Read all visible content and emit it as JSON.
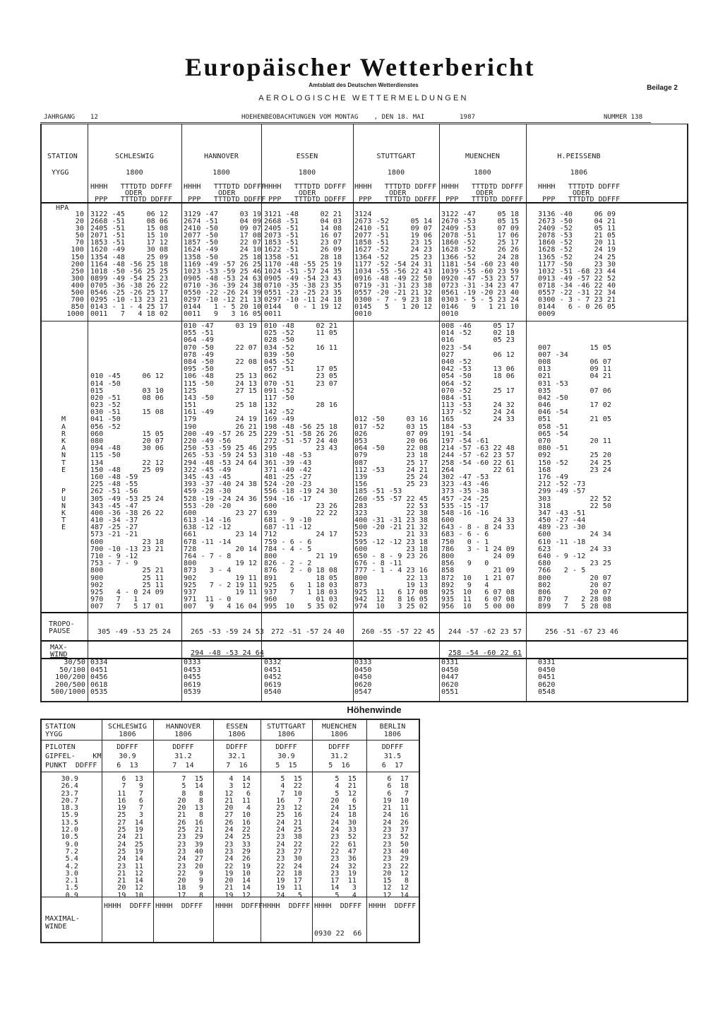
{
  "header": {
    "title": "Europäischer Wetterbericht",
    "subtitle": "Amtsblatt des Deutschen Wetterdienstes",
    "beilage": "Beilage 2",
    "section_title": "AEROLOGISCHE WETTERMELDUNGEN",
    "jahrgang_label": "JAHRGANG",
    "jahrgang": "12",
    "observation_line": "HOEHENBEOBACHTUNGEN VOM MONTAG    , DEN 18. MAI         1987",
    "nummer": "NUMMER 138"
  },
  "table": {
    "station_label": "STATION",
    "yygg_label": "YYGG",
    "col_head_1": "HHHH   TTTDTD DDFFF",
    "col_head_2": "        ODER",
    "col_head_3": " PPP   TTTDTD DDFFF",
    "hpa_label": "HPA",
    "levels": [
      "10",
      "20",
      "30",
      "50",
      "70",
      "100",
      "150",
      "200",
      "250",
      "300",
      "400",
      "500",
      "700",
      "850",
      "1000"
    ],
    "sig_label": [
      "",
      "",
      "",
      "",
      "",
      "",
      "",
      "",
      "",
      "",
      "",
      "",
      "",
      "M",
      "A",
      "R",
      "K",
      "A",
      "N",
      "T",
      "E",
      "",
      "",
      "P",
      "U",
      "N",
      "K",
      "T",
      "E"
    ],
    "tropo_label": [
      "TROPO-",
      "PAUSE"
    ],
    "maxwind_label": [
      "MAX-",
      "WIND"
    ],
    "layer_labels": [
      "30/50",
      "50/100",
      "100/200",
      "200/500",
      "500/1000"
    ],
    "stations": [
      {
        "name": "SCHLESWIG",
        "yygg": "1800",
        "levels": [
          "3122 -45     06 12",
          "2668 -51     08 06",
          "2405 -51     15 08",
          "2071 -51     15 10",
          "1853 -51     17 12",
          "1620 -49     30 08",
          "1354 -48     25 09",
          "1164 -48 -56 25 18",
          "1018 -50 -56 25 25",
          "0899 -49 -54 25 23",
          "0705 -36 -38 26 22",
          "0546 -25 -26 25 17",
          "0295 -10 -13 23 21",
          "0143 - 1 - 4 25 17",
          "0011   7   4 18 02"
        ],
        "significant": [
          "",
          "",
          "",
          "",
          "",
          "",
          "",
          "010 -45     06 12",
          "014 -50",
          "015         03 10",
          "020 -51     08 06",
          "023 -52",
          "030 -51     15 08",
          "041 -50",
          "056 -52",
          "060         15 05",
          "080         20 07",
          "094 -48     30 06",
          "115 -50",
          "134         22 12",
          "150 -48     25 09",
          "160 -48 -59",
          "225 -48 -55",
          "262 -51 -56",
          "305 -49 -53 25 24",
          "343 -45 -47",
          "400 -36 -38 26 22",
          "410 -34 -37",
          "487 -25 -27",
          "573 -21 -21",
          "600         23 18",
          "700 -10 -13 23 21",
          "710 - 9 -12",
          "753 - 7 - 9",
          "800         25 21",
          "900         25 11",
          "902         25 11",
          "925   4 - 0 24 09",
          "970   7   1",
          "007   7   5 17 01"
        ],
        "tropopause": "305 -49 -53 25 24",
        "maxwind": "",
        "layers": [
          "0334",
          "0451",
          "0456",
          "0618",
          "0535"
        ]
      },
      {
        "name": "HANNOVER",
        "yygg": "1800",
        "levels": [
          "3129 -47     03 19",
          "2674 -51     04 09",
          "2410 -50     09 07",
          "2077 -50     17 08",
          "1857 -50     22 07",
          "1624 -49     24 10",
          "1358 -50     25 18",
          "1169 -49 -57 26 25",
          "1023 -53 -59 25 46",
          "0905 -48 -53 24 63",
          "0710 -36 -39 24 38",
          "0550 -22 -26 24 39",
          "0297 -10 -12 21 13",
          "0144   1 - 5 20 10",
          "0011   9   3 16 05"
        ],
        "significant": [
          "010 -47     03 19",
          "055 -51",
          "064 -49",
          "070 -50     22 07",
          "078 -49",
          "084 -50     22 08",
          "095 -50",
          "106 -48     25 13",
          "115 -50     24 13",
          "125         27 15",
          "143 -50",
          "151         25 18",
          "161 -49",
          "179         24 19",
          "190         26 21",
          "200 -49 -57 26 25",
          "220 -49 -56",
          "250 -53 -59 25 46",
          "265 -53 -59 24 53",
          "294 -48 -53 24 64",
          "322 -45 -49",
          "345 -43 -45",
          "393 -37 -40 24 38",
          "459 -28 -30",
          "528 -19 -24 24 36",
          "553 -20 -20",
          "600         23 27",
          "613 -14 -16",
          "638 -12 -12",
          "661         23 14",
          "678 -11 -14",
          "728         20 14",
          "764 - 7 - 8",
          "800         19 12",
          "873   3 - 4",
          "902         19 11",
          "925   7 - 2 19 11",
          "937         19 11",
          "971  11 - 0",
          "007   9   4 16 04"
        ],
        "tropopause": "265 -53 -59 24 53",
        "maxwind": "294 -48 -53 24 64",
        "layers": [
          "0333",
          "0453",
          "0455",
          "0619",
          "0539"
        ]
      },
      {
        "name": "ESSEN",
        "yygg": "1800",
        "levels": [
          "3121 -48     02 21",
          "2668 -51     04 03",
          "2405 -51     14 08",
          "2073 -51     16 07",
          "1853 -51     23 07",
          "1622 -51     26 09",
          "1358 -51     28 18",
          "1170 -48 -55 25 19",
          "1024 -51 -57 24 35",
          "0905 -49 -54 23 43",
          "0710 -35 -38 23 35",
          "0551 -23 -25 23 35",
          "0297 -10 -11 24 18",
          "0144   0 - 1 19 12",
          "0011"
        ],
        "significant": [
          "010 -48     02 21",
          "025 -52     11 05",
          "028 -50",
          "034 -52     16 11",
          "039 -50",
          "045 -52",
          "057 -51     17 05",
          "062         23 05",
          "070 -51     23 07",
          "091 -52",
          "117 -50",
          "132         28 16",
          "142 -52",
          "169 -49",
          "198 -48 -56 25 18",
          "229 -51 -58 26 26",
          "272 -51 -57 24 40",
          "295         23 43",
          "310 -48 -53",
          "361 -39 -43",
          "371 -40 -42",
          "481 -25 -27",
          "524 -20 -23",
          "556 -18 -19 24 30",
          "594 -16 -17",
          "600         23 26",
          "639         22 22",
          "681 - 9 -10",
          "687 -11 -12",
          "712         24 17",
          "759 - 6 - 6",
          "784 - 4 - 5",
          "800         21 19",
          "826 - 2 - 2",
          "876   2 - 0 18 08",
          "891         18 05",
          "925   6   1 18 03",
          "937   7   1 18 03",
          "960         01 03",
          "995  10   5 35 02"
        ],
        "tropopause": "272 -51 -57 24 40",
        "maxwind": "",
        "layers": [
          "0332",
          "0451",
          "0452",
          "0619",
          "0540"
        ]
      },
      {
        "name": "STUTTGART",
        "yygg": "1800",
        "levels": [
          "3124",
          "2673 -52     05 14",
          "2410 -51     09 07",
          "2077 -51     19 06",
          "1858 -51     23 15",
          "1627 -52     24 23",
          "1364 -52     25 23",
          "1177 -52 -54 24 31",
          "1034 -55 -56 22 43",
          "0916 -48 -49 22 50",
          "0719 -31 -31 23 38",
          "0557 -20 -21 21 32",
          "0300 - 7 - 9 23 18",
          "0145   5   1 20 12",
          "0010"
        ],
        "significant": [
          "",
          "",
          "",
          "",
          "",
          "",
          "",
          "",
          "",
          "",
          "",
          "",
          "",
          "012 -50     03 16",
          "017 -52     03 15",
          "026         07 09",
          "053         20 06",
          "064 -50     22 08",
          "079         23 18",
          "087         25 17",
          "112 -53     24 21",
          "139         25 24",
          "156         25 23",
          "185 -51 -53",
          "260 -55 -57 22 45",
          "283         22 53",
          "323         22 38",
          "400 -31 -31 23 38",
          "500 -20 -21 21 32",
          "523         21 33",
          "595 -12 -12 23 18",
          "600         23 18",
          "650 - 8 - 9 23 26",
          "676 - 8 -11",
          "777 - 1 - 4 23 16",
          "800         22 13",
          "873         19 13",
          "925  11   6 17 08",
          "942  12   8 16 05",
          "974  10   3 25 02"
        ],
        "tropopause": "260 -55 -57 22 45",
        "maxwind": "",
        "layers": [
          "0333",
          "0450",
          "0450",
          "0620",
          "0547"
        ]
      },
      {
        "name": "MUENCHEN",
        "yygg": "1800",
        "levels": [
          "3122 -47     05 18",
          "2670 -53     05 15",
          "2409 -53     07 09",
          "2078 -51     17 06",
          "1860 -52     25 17",
          "1628 -52     26 26",
          "1366 -52     24 28",
          "1181 -54 -60 23 40",
          "1039 -55 -60 23 59",
          "0920 -47 -53 23 57",
          "0723 -31 -34 23 47",
          "0561 -19 -20 23 40",
          "0303 - 5 - 5 23 24",
          "0146   9   1 21 10",
          "0010"
        ],
        "significant": [
          "008 -46     05 17",
          "014 -52     02 18",
          "016         05 23",
          "023 -54",
          "027         06 12",
          "040 -52",
          "042 -53     13 06",
          "054 -50     18 06",
          "064 -52",
          "070 -52     25 17",
          "084 -51",
          "113 -53     24 32",
          "137 -52     24 24",
          "165         24 33",
          "184 -53",
          "191 -54",
          "197 -54 -61",
          "214 -57 -63 22 48",
          "244 -57 -62 23 57",
          "258 -54 -60 22 61",
          "264         22 61",
          "302 -47 -53",
          "323 -43 -46",
          "373 -35 -38",
          "457 -24 -25",
          "535 -15 -17",
          "548 -16 -16",
          "600         24 33",
          "643 - 8 - 8 24 33",
          "683 - 6 - 6",
          "750   0 - 1",
          "786   3 - 1 24 09",
          "800         24 09",
          "856   9   0",
          "858         21 09",
          "872  10   1 21 07",
          "892   9   4",
          "925  10   6 07 08",
          "935  11   6 07 08",
          "956  10   5 00 00"
        ],
        "tropopause": "244 -57 -62 23 57",
        "maxwind": "258 -54 -60 22 61",
        "layers": [
          "0331",
          "0450",
          "0447",
          "0620",
          "0551"
        ]
      },
      {
        "name": "H.PEISSENB",
        "yygg": "1806",
        "levels": [
          "3136 -40     06 09",
          "2673 -50     04 21",
          "2409 -52     05 11",
          "2078 -53     21 05",
          "1860 -52     20 11",
          "1628 -52     24 19",
          "1365 -52     24 25",
          "1177 -50     23 30",
          "1032 -51 -68 23 44",
          "0913 -49 -57 22 52",
          "0718 -34 -46 22 40",
          "0557 -22 -31 22 34",
          "0300 - 3 - 7 23 21",
          "0144   6 - 0 26 05",
          "0009"
        ],
        "significant": [
          "",
          "",
          "",
          "007         15 05",
          "007 -34",
          "008         06 07",
          "013         09 11",
          "021         04 21",
          "031 -53",
          "035         07 06",
          "042 -50",
          "046         17 02",
          "046 -54",
          "051         21 05",
          "058 -51",
          "065 -54",
          "070         20 11",
          "080 -51",
          "092         25 20",
          "150 -52     24 25",
          "168         23 24",
          "176 -49",
          "212 -52 -73",
          "299 -49 -57",
          "303         22 52",
          "318         22 50",
          "347 -43 -51",
          "450 -27 -44",
          "489 -23 -30",
          "600         24 34",
          "610 -11 -18",
          "623         24 33",
          "640 - 9 -12",
          "680         23 25",
          "766   2 - 5",
          "800         20 07",
          "802         20 07",
          "806         20 07",
          "870   7   2 28 08",
          "899   7   5 28 08"
        ],
        "tropopause": "256 -51 -67 23 46",
        "maxwind": "",
        "layers": [
          "0331",
          "0450",
          "0451",
          "0620",
          "0548"
        ]
      }
    ]
  },
  "hoehenwinde": {
    "title": "Höhenwinde",
    "station_label": "STATION",
    "yygg_label": "YYGG",
    "pilot_label": [
      "PILOTEN",
      "GIPFEL-    KM",
      "PUNKT  DDFFF"
    ],
    "heights": [
      "30.9",
      "26.4",
      "23.7",
      "20.7",
      "18.3",
      "15.9",
      "13.5",
      "12.0",
      "10.5",
      "9.0",
      "7.2",
      "5.4",
      "4.2",
      "3.0",
      "2.1",
      "1.5",
      "0.9"
    ],
    "maxwind_label": [
      "MAXIMAL-",
      "WINDE"
    ],
    "maxwind_head": "HHHH  DDFFF",
    "stations": [
      {
        "name": "SCHLESWIG",
        "yygg": "1806",
        "pilot": [
          "DDFFF",
          "30.9",
          "6  13"
        ],
        "winds": [
          "6  13",
          "7   9",
          "11   7",
          "16   6",
          "19   7",
          "25   3",
          "27  14",
          "25  19",
          "24  21",
          "24  25",
          "25  19",
          "24  14",
          "23  11",
          "21  12",
          "21  14",
          "20  12",
          "19  10"
        ],
        "maxwind": ""
      },
      {
        "name": "HANNOVER",
        "yygg": "1806",
        "pilot": [
          "DDFFF",
          "31.2",
          "7  14"
        ],
        "winds": [
          "7  15",
          "5  14",
          "8   8",
          "20   8",
          "20  13",
          "21   8",
          "26  16",
          "25  21",
          "23  29",
          "23  39",
          "23  40",
          "24  27",
          "23  20",
          "22   9",
          "20   9",
          "18   9",
          "17   8"
        ],
        "maxwind": ""
      },
      {
        "name": "ESSEN",
        "yygg": "1806",
        "pilot": [
          "DDFFF",
          "32.1",
          "7  16"
        ],
        "winds": [
          "4  14",
          "3  12",
          "12   6",
          "21  11",
          "20   4",
          "27  10",
          "26  16",
          "24  22",
          "24  25",
          "23  33",
          "23  29",
          "24  26",
          "22  19",
          "19  10",
          "20  14",
          "21  14",
          "19  12"
        ],
        "maxwind": ""
      },
      {
        "name": "STUTTGART",
        "yygg": "1806",
        "pilot": [
          "DDFFF",
          "30.9",
          "5  15"
        ],
        "winds": [
          "5  15",
          "4  22",
          "7  10",
          "16   7",
          "23  12",
          "25  16",
          "24  21",
          "24  25",
          "23  38",
          "24  22",
          "23  27",
          "23  30",
          "22  24",
          "22  18",
          "19  17",
          "19  11",
          "24   5"
        ],
        "maxwind": ""
      },
      {
        "name": "MUENCHEN",
        "yygg": "1806",
        "pilot": [
          "DDFFF",
          "31.2",
          "5  16"
        ],
        "winds": [
          "5  15",
          "4  21",
          "5  12",
          "20   6",
          "24  15",
          "24  18",
          "24  30",
          "24  33",
          "23  52",
          "22  61",
          "22  47",
          "23  36",
          "24  32",
          "23  19",
          "17  11",
          "14   3",
          "5   4"
        ],
        "maxwind": "0930 22  66"
      },
      {
        "name": "BERLIN",
        "yygg": "1806",
        "pilot": [
          "DDFFF",
          "31.5",
          "6  17"
        ],
        "winds": [
          "6  17",
          "6  18",
          "6   7",
          "19  10",
          "21  11",
          "24  16",
          "24  26",
          "23  37",
          "23  52",
          "23  50",
          "23  40",
          "23  29",
          "23  22",
          "20  12",
          "15   8",
          "12  12",
          "12  14"
        ],
        "maxwind": ""
      }
    ]
  }
}
